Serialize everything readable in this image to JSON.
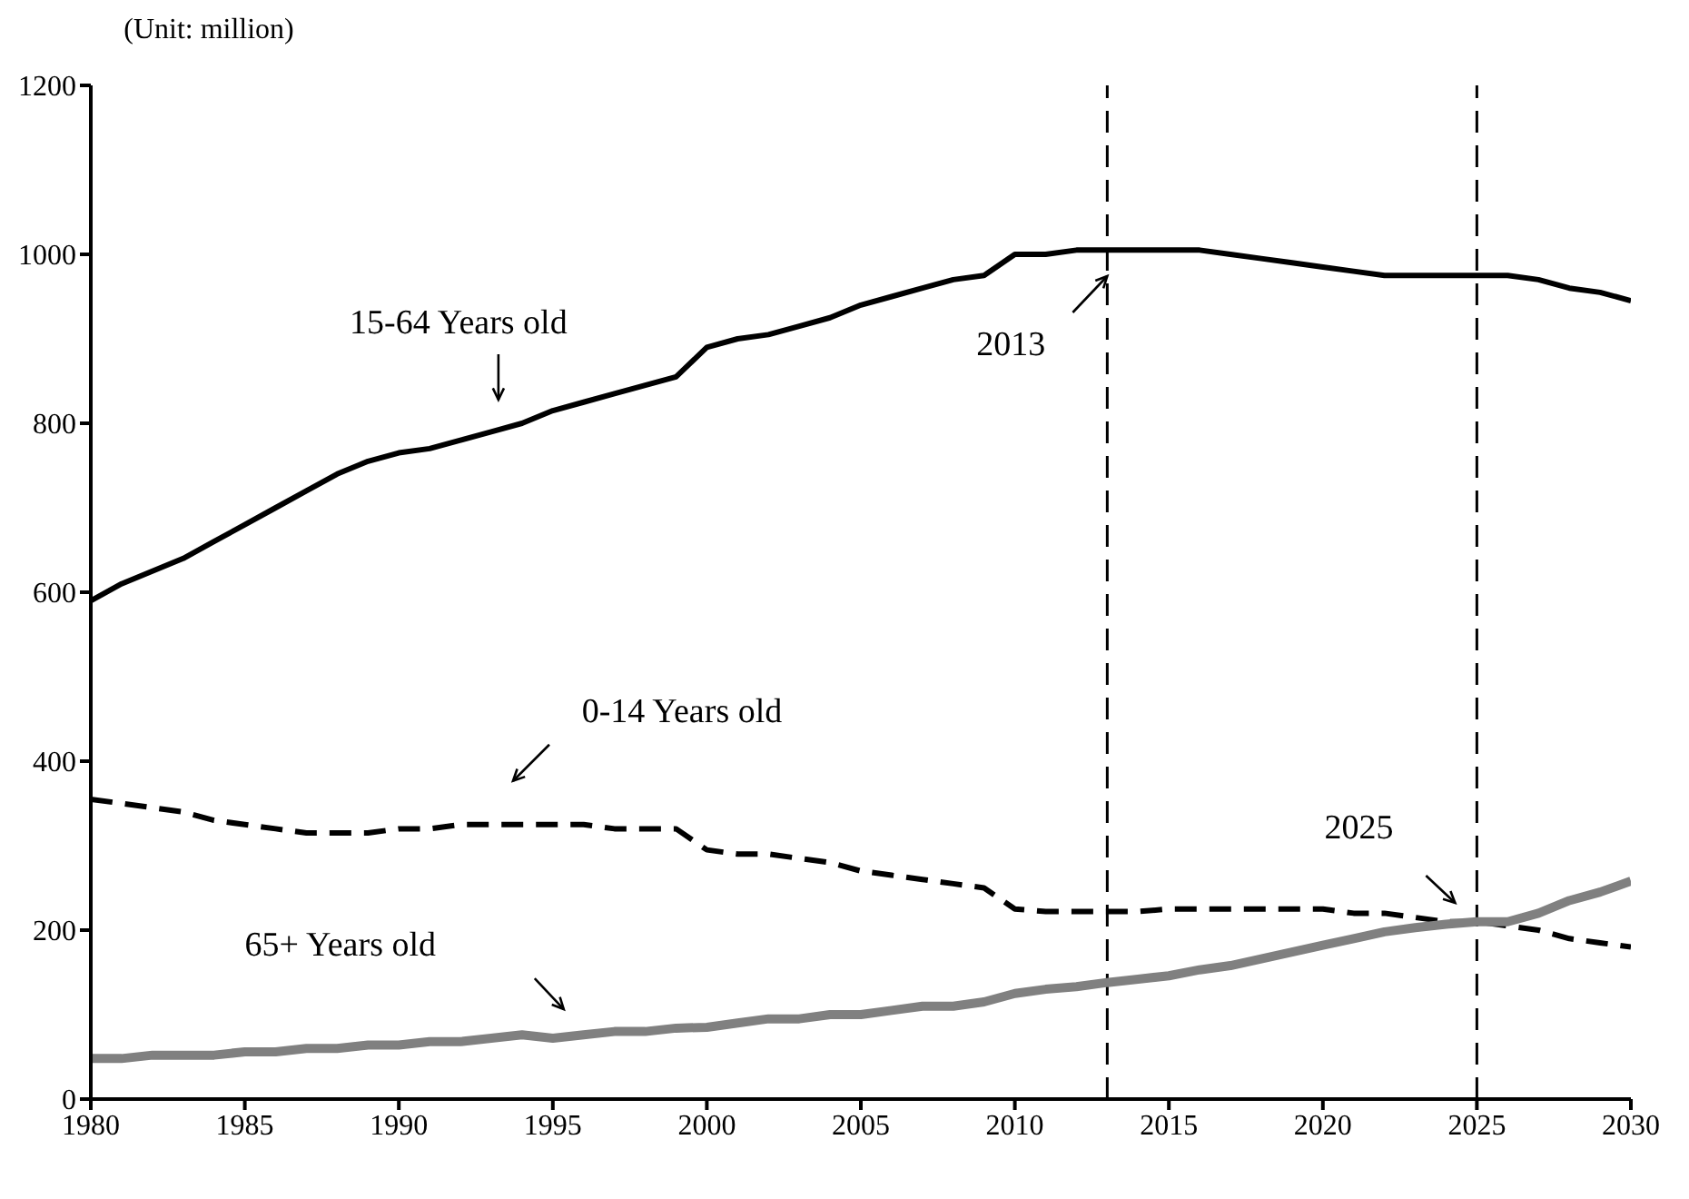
{
  "chart_data": {
    "type": "line",
    "ylabel": "(Unit: million)",
    "x": [
      1980,
      1981,
      1982,
      1983,
      1984,
      1985,
      1986,
      1987,
      1988,
      1989,
      1990,
      1991,
      1992,
      1993,
      1994,
      1995,
      1996,
      1997,
      1998,
      1999,
      2000,
      2001,
      2002,
      2003,
      2004,
      2005,
      2006,
      2007,
      2008,
      2009,
      2010,
      2011,
      2012,
      2013,
      2014,
      2015,
      2016,
      2017,
      2018,
      2019,
      2020,
      2021,
      2022,
      2023,
      2024,
      2025,
      2026,
      2027,
      2028,
      2029,
      2030
    ],
    "series": [
      {
        "name": "15-64 Years old",
        "color": "#000000",
        "line_style": "solid",
        "values": [
          590,
          610,
          625,
          640,
          660,
          680,
          700,
          720,
          740,
          755,
          765,
          770,
          780,
          790,
          800,
          815,
          825,
          835,
          845,
          855,
          890,
          900,
          905,
          915,
          925,
          940,
          950,
          960,
          970,
          975,
          1000,
          1000,
          1005,
          1005,
          1005,
          1005,
          1005,
          1000,
          995,
          990,
          985,
          980,
          975,
          975,
          975,
          975,
          975,
          970,
          960,
          955,
          945
        ]
      },
      {
        "name": "0-14 Years old",
        "color": "#000000",
        "line_style": "dashed",
        "values": [
          355,
          350,
          345,
          340,
          330,
          325,
          320,
          315,
          315,
          315,
          320,
          320,
          325,
          325,
          325,
          325,
          325,
          320,
          320,
          320,
          295,
          290,
          290,
          285,
          280,
          270,
          265,
          260,
          255,
          250,
          225,
          222,
          222,
          222,
          222,
          225,
          225,
          225,
          225,
          225,
          225,
          220,
          220,
          215,
          210,
          210,
          205,
          200,
          190,
          185,
          180
        ]
      },
      {
        "name": "65+ Years old",
        "color": "#808080",
        "line_style": "solid",
        "values": [
          48,
          48,
          52,
          52,
          52,
          56,
          56,
          60,
          60,
          64,
          64,
          68,
          68,
          72,
          76,
          72,
          76,
          80,
          80,
          84,
          85,
          90,
          95,
          95,
          100,
          100,
          105,
          110,
          110,
          115,
          125,
          130,
          133,
          138,
          142,
          146,
          153,
          158,
          166,
          174,
          182,
          190,
          198,
          203,
          207,
          210,
          210,
          220,
          235,
          245,
          258
        ]
      }
    ],
    "xlim": [
      1980,
      2030
    ],
    "xticks": [
      1980,
      1985,
      1990,
      1995,
      2000,
      2005,
      2010,
      2015,
      2020,
      2025,
      2030
    ],
    "ylim": [
      0,
      1200
    ],
    "yticks": [
      0,
      200,
      400,
      600,
      800,
      1000,
      1200
    ],
    "ref_lines": [
      {
        "axis": "x",
        "value": 2013,
        "label": "2013",
        "line_style": "dashed",
        "color": "#000000"
      },
      {
        "axis": "x",
        "value": 2025,
        "label": "2025",
        "line_style": "dashed",
        "color": "#000000"
      }
    ],
    "marker": "none"
  }
}
